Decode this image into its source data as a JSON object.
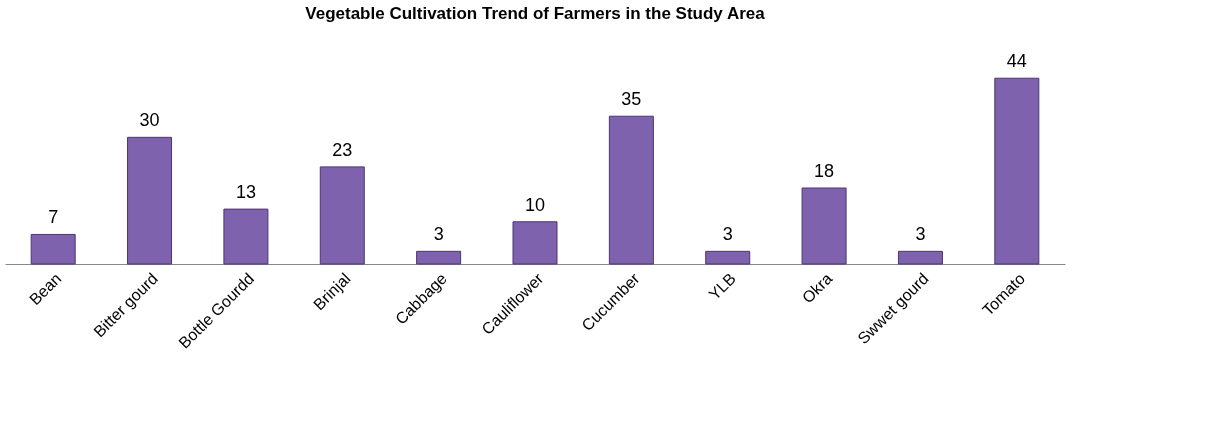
{
  "chart_data": {
    "type": "bar",
    "title": "Vegetable Cultivation Trend of Farmers in the Study Area",
    "categories": [
      "Bean",
      "Bitter gourd",
      "Bottle Gourdd",
      "Brinjal",
      "Cabbage",
      "Cauliflower",
      "Cucumber",
      "YLB",
      "Okra",
      "Swwet gourd",
      "Tomato"
    ],
    "values": [
      7,
      30,
      13,
      23,
      3,
      10,
      35,
      3,
      18,
      3,
      44
    ],
    "color": "#7f62ad",
    "data_labels": true
  }
}
